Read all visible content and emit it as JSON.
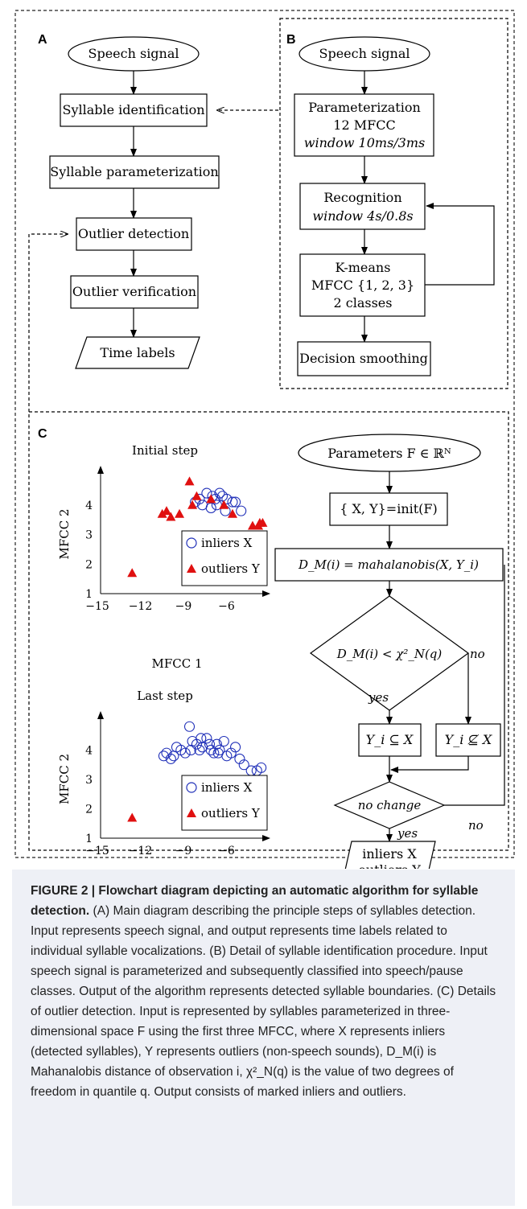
{
  "panels": {
    "a": "A",
    "b": "B",
    "c": "C"
  },
  "panel_a": {
    "start": "Speech signal",
    "step1": "Syllable identification",
    "step2": "Syllable parameterization",
    "step3": "Outlier detection",
    "step4": "Outlier verification",
    "end": "Time labels"
  },
  "panel_b": {
    "start": "Speech signal",
    "param_l1": "Parameterization",
    "param_l2": "12 MFCC",
    "param_l3": "window 10ms/3ms",
    "recog_l1": "Recognition",
    "recog_l2": "window 4s/0.8s",
    "kmeans_l1": "K-means",
    "kmeans_l2": "MFCC {1, 2, 3}",
    "kmeans_l3": "2 classes",
    "smooth": "Decision smoothing"
  },
  "panel_c_flow": {
    "start": "Parameters F ∈ ℝᴺ",
    "init": "{ X, Y}=init(F)",
    "dist": "D_M(i) = mahalanobis(X, Y_i)",
    "decision": "D_M(i) < χ²_N(q)",
    "no1": "no",
    "yes1": "yes",
    "subset": "Y_i ⊆ X",
    "notsubset": "Y_i ⊈ X",
    "nochange": "no change",
    "no2": "no",
    "yes2": "yes",
    "out_l1": "inliers X",
    "out_l2": "outliers Y"
  },
  "chart_data": [
    {
      "type": "scatter",
      "title": "Initial step",
      "xlabel": "MFCC 1",
      "ylabel": "MFCC 2",
      "xlim": [
        -15,
        -3.5
      ],
      "ylim": [
        1,
        5.3
      ],
      "xticks": [
        -15,
        -12,
        -9,
        -6
      ],
      "yticks": [
        1,
        2,
        3,
        4
      ],
      "legend_position": "bottom-right",
      "series": [
        {
          "name": "inliers X",
          "marker": "circle",
          "color": "#1f2fb8",
          "x": [
            -8.1,
            -7.6,
            -7.2,
            -6.7,
            -6.2,
            -5.6,
            -7.9,
            -7.3,
            -6.9,
            -6.3,
            -5.8,
            -8.4,
            -7.0,
            -6.5,
            -5.2
          ],
          "y": [
            4.2,
            4.4,
            4.3,
            4.4,
            4.2,
            4.1,
            4.0,
            3.9,
            4.0,
            3.8,
            4.1,
            4.1,
            4.2,
            4.3,
            3.8
          ]
        },
        {
          "name": "outliers Y",
          "marker": "triangle",
          "color": "#e01010",
          "x": [
            -12.8,
            -10.4,
            -10.1,
            -10.7,
            -9.5,
            -8.6,
            -8.3,
            -7.3,
            -6.4,
            -5.8,
            -4.4,
            -4.0,
            -3.7,
            -3.9,
            -8.8
          ],
          "y": [
            1.7,
            3.8,
            3.6,
            3.7,
            3.7,
            4.0,
            4.3,
            4.2,
            4.0,
            3.7,
            3.3,
            3.3,
            3.4,
            3.4,
            4.8
          ]
        }
      ]
    },
    {
      "type": "scatter",
      "title": "Last step",
      "xlabel": "MFCC 1",
      "ylabel": "MFCC 2",
      "xlim": [
        -15,
        -3.5
      ],
      "ylim": [
        1,
        5.3
      ],
      "xticks": [
        -15,
        -12,
        -9,
        -6
      ],
      "yticks": [
        1,
        2,
        3,
        4
      ],
      "legend_position": "bottom-right",
      "series": [
        {
          "name": "inliers X",
          "marker": "circle",
          "color": "#1f2fb8",
          "x": [
            -10.6,
            -10.4,
            -10.1,
            -9.7,
            -9.4,
            -9.1,
            -8.8,
            -8.6,
            -8.3,
            -8.1,
            -7.9,
            -7.6,
            -7.3,
            -7.1,
            -6.9,
            -6.7,
            -6.4,
            -6.2,
            -5.9,
            -5.6,
            -5.3,
            -5.0,
            -4.5,
            -4.1,
            -3.8,
            -8.7,
            -7.4,
            -6.8,
            -9.9,
            -8.0
          ],
          "y": [
            3.8,
            3.9,
            3.7,
            4.1,
            4.0,
            3.9,
            4.8,
            4.3,
            4.2,
            4.0,
            4.1,
            4.4,
            4.0,
            3.9,
            4.2,
            4.0,
            4.3,
            3.8,
            3.9,
            4.1,
            3.7,
            3.5,
            3.3,
            3.3,
            3.4,
            4.0,
            4.2,
            3.9,
            3.8,
            4.4
          ]
        },
        {
          "name": "outliers Y",
          "marker": "triangle",
          "color": "#e01010",
          "x": [
            -12.8
          ],
          "y": [
            1.7
          ]
        }
      ]
    }
  ],
  "caption": {
    "label": "FIGURE 2 | Flowchart diagram depicting an automatic algorithm for syllable detection",
    "text": "(A) Main diagram describing the principle steps of syllables detection. Input represents speech signal, and output represents time labels related to individual syllable vocalizations. (B) Detail of syllable identification procedure. Input speech signal is parameterized and subsequently classified into speech/pause classes. Output of the algorithm represents detected syllable boundaries. (C) Details of outlier detection. Input is represented by syllables parameterized in three-dimensional space F using the first three MFCC, where X represents inliers (detected syllables), Y represents outliers (non-speech sounds), D_M(i) is Mahanalobis distance of observation i, χ²_N(q) is the value of two degrees of freedom in quantile q. Output consists of marked inliers and outliers."
  }
}
